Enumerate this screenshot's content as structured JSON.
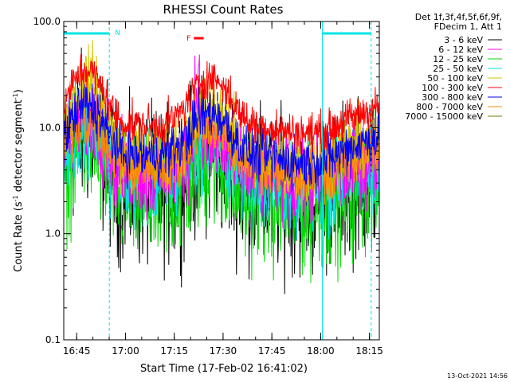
{
  "colors": {
    "background": "#ffffff",
    "axis": "#000000",
    "cyan_markers": "#00e5e5",
    "flare_marker": "#ff0000"
  },
  "chart_data": {
    "type": "line",
    "title": "RHESSI Count Rates",
    "xlabel": "Start Time (17-Feb-02 16:41:02)",
    "ylabel_main": "Count Rate (s",
    "ylabel_sup": "-1",
    "ylabel_rest": " detector segment",
    "ylabel_sup2": "-1",
    "ylabel_end": ")",
    "timestamp": "13-Oct-2021 14:56",
    "y_scale": "log",
    "ylim": [
      0.1,
      100
    ],
    "xlim_minutes": [
      0,
      97
    ],
    "x_ticks": [
      {
        "label": "16:45",
        "minute": 3.97
      },
      {
        "label": "17:00",
        "minute": 18.97
      },
      {
        "label": "17:15",
        "minute": 33.97
      },
      {
        "label": "17:30",
        "minute": 48.97
      },
      {
        "label": "17:45",
        "minute": 63.97
      },
      {
        "label": "18:00",
        "minute": 78.97
      },
      {
        "label": "18:15",
        "minute": 93.97
      }
    ],
    "y_ticks": [
      {
        "label": "100.0",
        "value": 100
      },
      {
        "label": "10.0",
        "value": 10
      },
      {
        "label": "1.0",
        "value": 1
      },
      {
        "label": "0.1",
        "value": 0.1
      }
    ],
    "legend_header": [
      "Det 1f,3f,4f,5f,6f,9f,",
      "FDecim 1, Att 1"
    ],
    "legend_position": "right",
    "annotations": {
      "night_marker": "N",
      "flare_marker": "F",
      "night_intervals_minutes": [
        [
          0,
          14
        ],
        [
          79.5,
          94.5
        ]
      ],
      "flare_interval_minutes": [
        40,
        43
      ]
    },
    "series": [
      {
        "name": "3 - 6 keV",
        "color": "#000000",
        "base": 2.6,
        "amp1": 2.6,
        "amp2": 1.3,
        "noise": 0.12,
        "spike": 0
      },
      {
        "name": "6 - 12 keV",
        "color": "#ff00ff",
        "base": 3.6,
        "amp1": 2.6,
        "amp2": 1.2,
        "noise": 0.07,
        "spike": 3.5
      },
      {
        "name": "12 - 25 keV",
        "color": "#00dd00",
        "base": 2.0,
        "amp1": 2.5,
        "amp2": 1.3,
        "noise": 0.1,
        "spike": 0
      },
      {
        "name": "25 - 50 keV",
        "color": "#00e5e5",
        "base": 3.0,
        "amp1": 2.6,
        "amp2": 1.3,
        "noise": 0.07,
        "spike": 0
      },
      {
        "name": "50 - 100 keV",
        "color": "#d4c400",
        "base": 5.0,
        "amp1": 4.2,
        "amp2": 2.1,
        "noise": 0.06,
        "spike": 0
      },
      {
        "name": "100 - 300 keV",
        "color": "#ff0000",
        "base": 10.5,
        "amp1": 2.3,
        "amp2": 1.8,
        "noise": 0.03,
        "spike": 0
      },
      {
        "name": "300 - 800 keV",
        "color": "#0000ff",
        "base": 5.5,
        "amp1": 2.0,
        "amp2": 1.5,
        "noise": 0.04,
        "spike": 0
      },
      {
        "name": "800 - 7000 keV",
        "color": "#ff8800",
        "base": 4.3,
        "amp1": 1.7,
        "amp2": 1.3,
        "noise": 0.04,
        "spike": 0
      },
      {
        "name": "7000 - 15000 keV",
        "color": "#668800",
        "base": 0,
        "amp1": 0,
        "amp2": 0,
        "noise": 0,
        "spike": 0
      }
    ]
  }
}
